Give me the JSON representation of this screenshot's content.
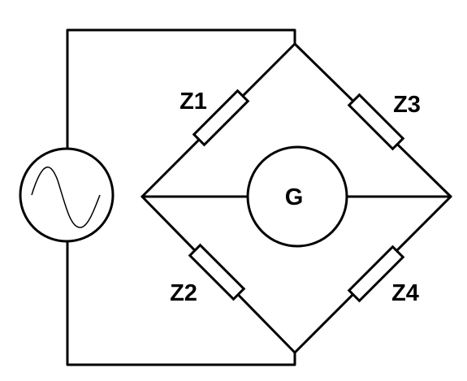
{
  "diagram": {
    "source_symbol": "ac-source-icon",
    "meter_label": "G",
    "impedances": [
      {
        "id": "z1",
        "label": "Z1"
      },
      {
        "id": "z2",
        "label": "Z2"
      },
      {
        "id": "z3",
        "label": "Z3"
      },
      {
        "id": "z4",
        "label": "Z4"
      }
    ],
    "colors": {
      "line": "#000000",
      "background": "#ffffff"
    }
  }
}
